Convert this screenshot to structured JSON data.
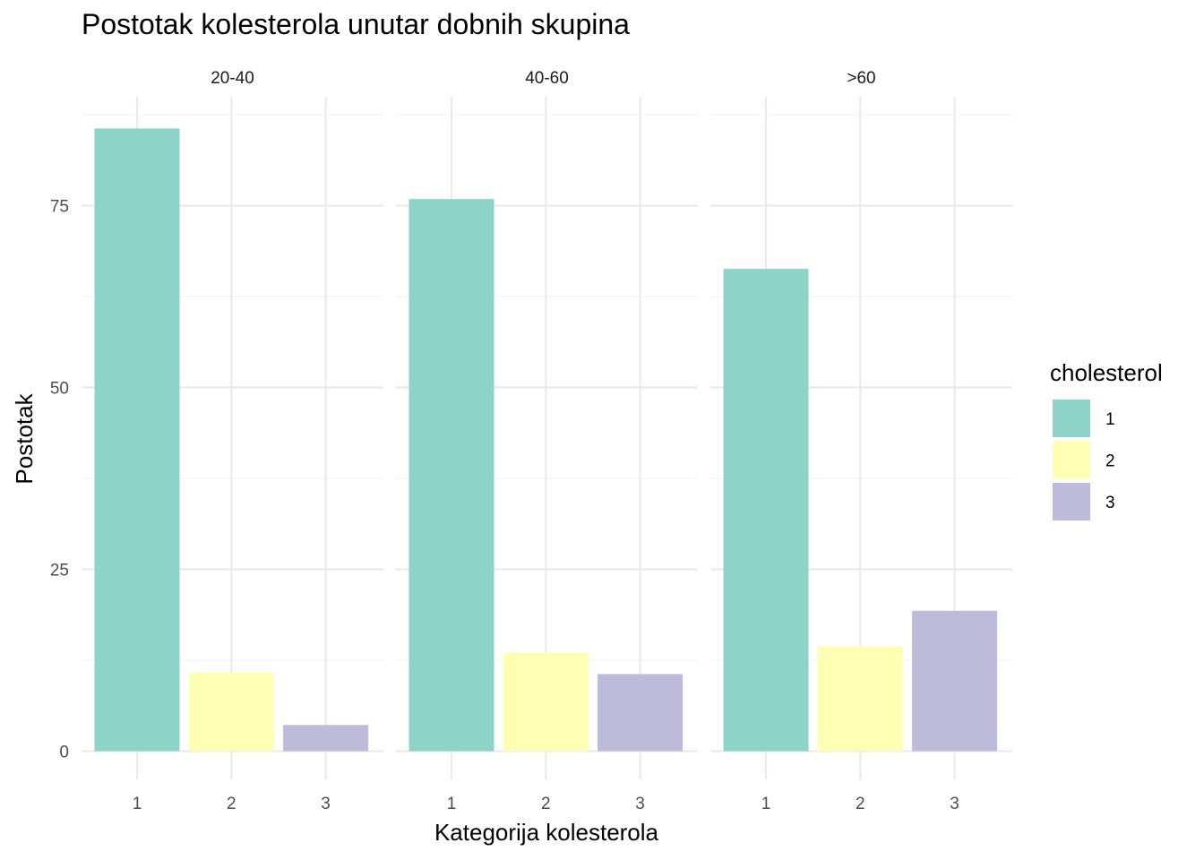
{
  "chart_data": {
    "type": "bar",
    "title": "Postotak kolesterola unutar dobnih skupina",
    "xlabel": "Kategorija kolesterola",
    "ylabel": "Postotak",
    "ylim": [
      0,
      88
    ],
    "yticks": [
      0,
      25,
      50,
      75
    ],
    "ytick_labels": [
      "0",
      "25",
      "50",
      "75"
    ],
    "grid": true,
    "legend_position": "right",
    "legend_title": "cholesterol",
    "categories": [
      "1",
      "2",
      "3"
    ],
    "series_colors": {
      "1": "#8DD3C7",
      "2": "#FFFFB3",
      "3": "#BEBADA"
    },
    "legend": [
      {
        "label": "1",
        "color": "#8DD3C7"
      },
      {
        "label": "2",
        "color": "#FFFFB3"
      },
      {
        "label": "3",
        "color": "#BEBADA"
      }
    ],
    "facets": [
      {
        "name": "20-40",
        "values": [
          85.6,
          10.8,
          3.6
        ]
      },
      {
        "name": "40-60",
        "values": [
          75.9,
          13.5,
          10.6
        ]
      },
      {
        "name": ">60",
        "values": [
          66.3,
          14.4,
          19.3
        ]
      }
    ]
  }
}
